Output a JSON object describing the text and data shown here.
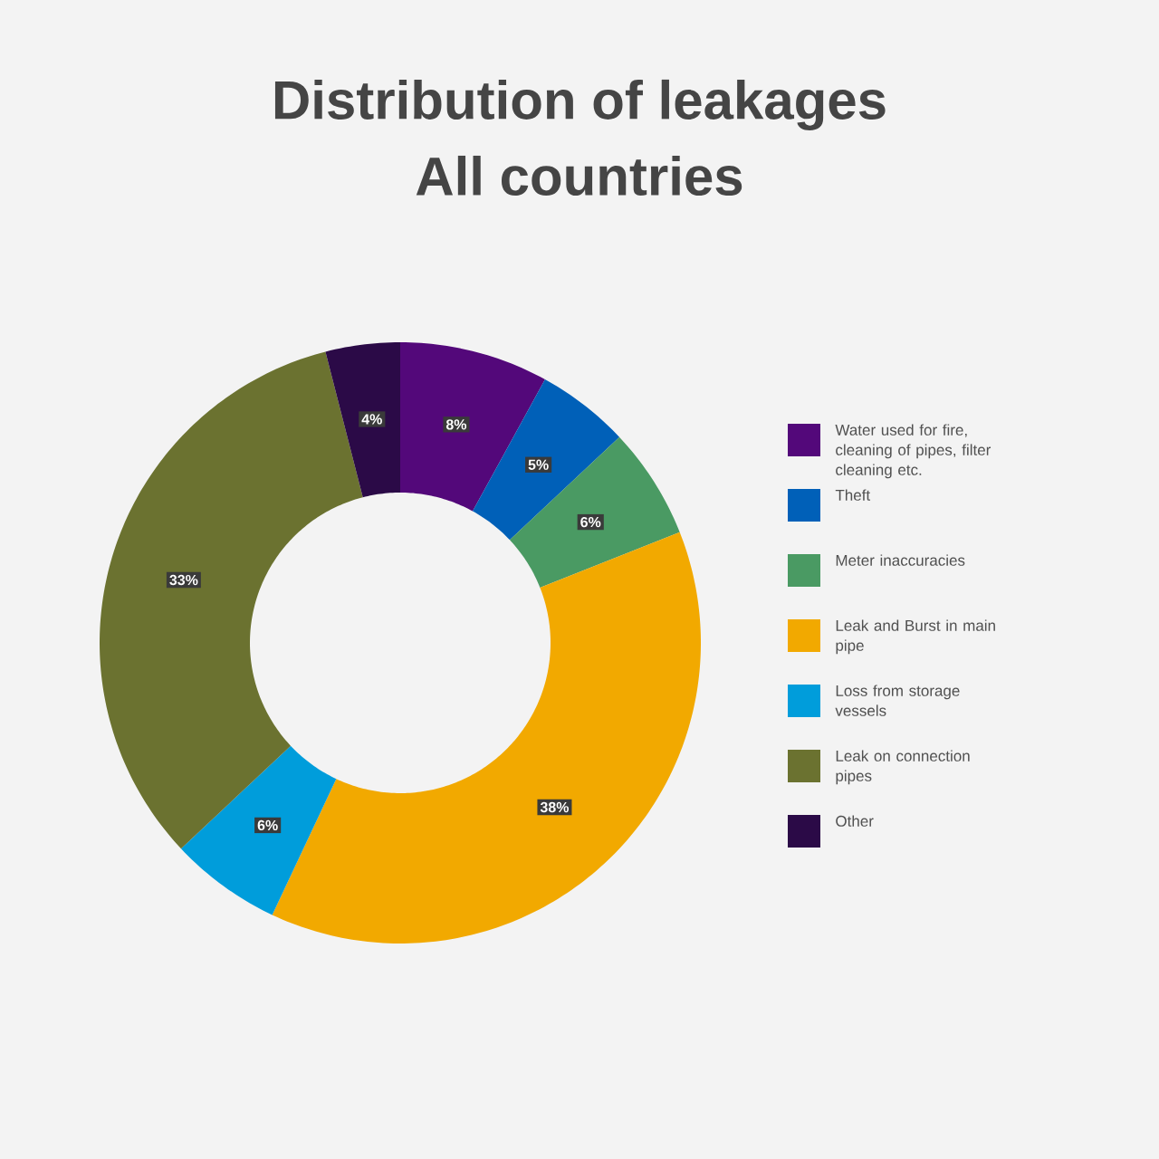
{
  "chart_data": {
    "type": "donut",
    "title": "Distribution of leakages",
    "subtitle": "All countries",
    "categories": [
      "Water used for fire, cleaning of pipes, filter cleaning etc.",
      "Theft",
      "Meter inaccuracies",
      "Leak and Burst in main pipe",
      "Loss from storage vessels",
      "Leak on connection pipes",
      "Other"
    ],
    "values": [
      8,
      5,
      6,
      38,
      6,
      33,
      4
    ],
    "value_labels": [
      "8%",
      "5%",
      "6%",
      "38%",
      "6%",
      "33%",
      "4%"
    ],
    "colors": [
      "#53087a",
      "#0060b8",
      "#4a9a63",
      "#f2a900",
      "#009ddb",
      "#6b7230",
      "#2b0a47"
    ],
    "legend": "right"
  }
}
